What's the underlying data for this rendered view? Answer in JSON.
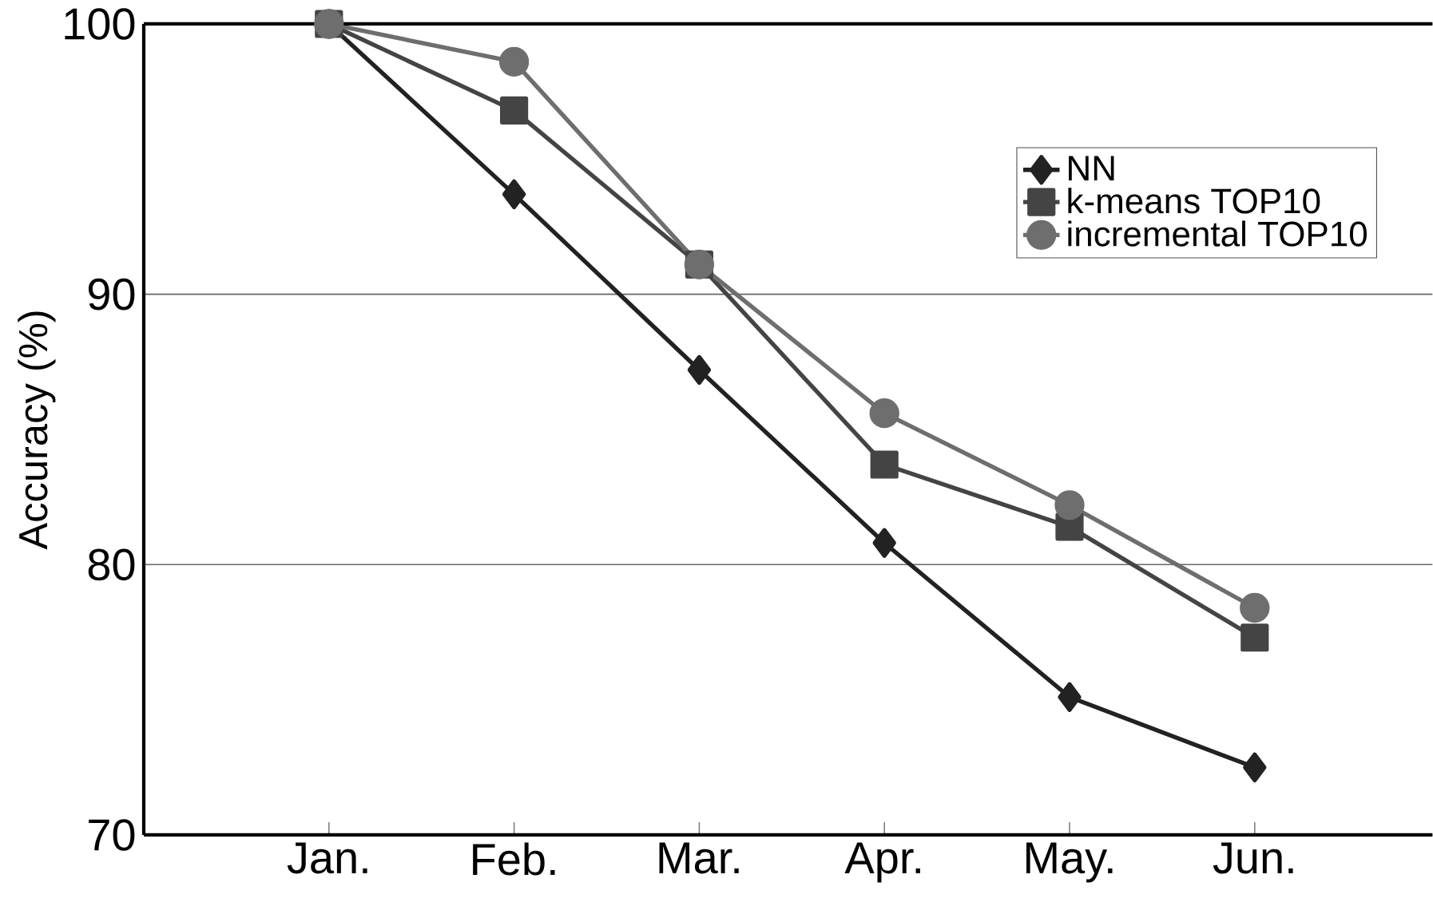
{
  "chart_data": {
    "type": "line",
    "ylabel": "Accuracy (%)",
    "categories": [
      "Jan.",
      "Feb.",
      "Mar.",
      "Apr.",
      "May.",
      "Jun."
    ],
    "series": [
      {
        "name": "NN",
        "color": "#222222",
        "marker": "diamond",
        "values": [
          100,
          93.7,
          87.2,
          80.8,
          75.1,
          72.5
        ]
      },
      {
        "name": "k-means TOP10",
        "color": "#444444",
        "marker": "square",
        "values": [
          100,
          96.8,
          91.1,
          83.7,
          81.4,
          77.3
        ]
      },
      {
        "name": "incremental TOP10",
        "color": "#6e6e6e",
        "marker": "circle",
        "values": [
          100,
          98.6,
          91.1,
          85.6,
          82.2,
          78.4
        ]
      }
    ],
    "ylim": [
      70,
      100
    ],
    "yticks": [
      70,
      80,
      90,
      100
    ],
    "grid": "y",
    "legend": "top right",
    "line_style": "solid"
  }
}
